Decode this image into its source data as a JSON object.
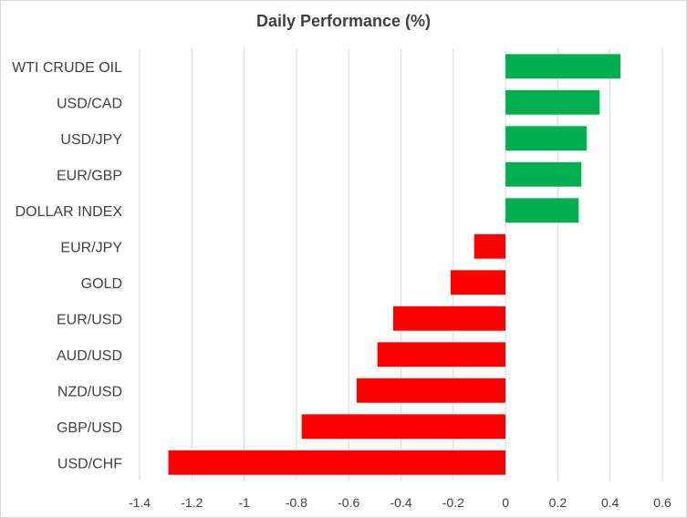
{
  "chart_data": {
    "type": "bar",
    "orientation": "horizontal",
    "title": "Daily Performance (%)",
    "xlabel": "",
    "ylabel": "",
    "categories": [
      "WTI CRUDE OIL",
      "USD/CAD",
      "USD/JPY",
      "EUR/GBP",
      "DOLLAR INDEX",
      "EUR/JPY",
      "GOLD",
      "EUR/USD",
      "AUD/USD",
      "NZD/USD",
      "GBP/USD",
      "USD/CHF"
    ],
    "values": [
      0.44,
      0.36,
      0.31,
      0.29,
      0.28,
      -0.12,
      -0.21,
      -0.43,
      -0.49,
      -0.57,
      -0.78,
      -1.29
    ],
    "xlim": [
      -1.4,
      0.6
    ],
    "ticks": [
      "-1.4",
      "-1.2",
      "-1",
      "-0.8",
      "-0.6",
      "-0.4",
      "-0.2",
      "0",
      "0.2",
      "0.4",
      "0.6"
    ],
    "tick_values": [
      -1.4,
      -1.2,
      -1.0,
      -0.8,
      -0.6,
      -0.4,
      -0.2,
      0,
      0.2,
      0.4,
      0.6
    ],
    "grid": "vertical",
    "legend": "none",
    "colors": {
      "positive": "#00b050",
      "negative": "#ff0000",
      "grid": "#d9d9d9",
      "text": "#404040"
    }
  }
}
